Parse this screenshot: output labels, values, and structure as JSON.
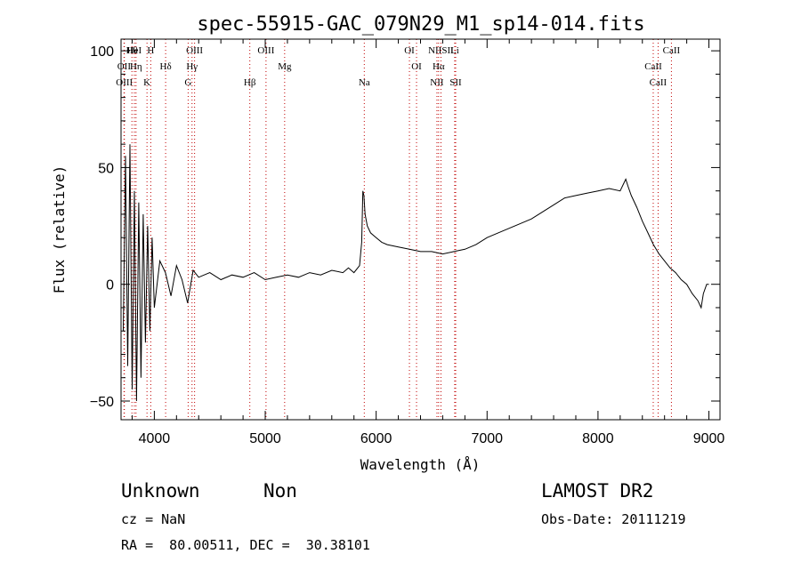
{
  "chart_data": {
    "type": "line",
    "title": "spec-55915-GAC_079N29_M1_sp14-014.fits",
    "xlabel": "Wavelength (Å)",
    "ylabel": "Flux (relative)",
    "xlim": [
      3700,
      9100
    ],
    "ylim": [
      -58,
      105
    ],
    "xticks": [
      4000,
      5000,
      6000,
      7000,
      8000,
      9000
    ],
    "yticks": [
      -50,
      0,
      50,
      100
    ],
    "line_color": "#000000",
    "marker_color": "#c00000",
    "spectrum": {
      "x": [
        3720,
        3740,
        3760,
        3780,
        3800,
        3820,
        3840,
        3860,
        3880,
        3900,
        3920,
        3940,
        3960,
        3980,
        4000,
        4050,
        4100,
        4150,
        4200,
        4250,
        4300,
        4350,
        4400,
        4500,
        4600,
        4700,
        4800,
        4900,
        5000,
        5100,
        5200,
        5300,
        5400,
        5500,
        5600,
        5700,
        5750,
        5800,
        5850,
        5870,
        5880,
        5890,
        5900,
        5920,
        5950,
        6000,
        6050,
        6100,
        6200,
        6300,
        6400,
        6500,
        6600,
        6700,
        6800,
        6900,
        7000,
        7100,
        7200,
        7300,
        7400,
        7500,
        7600,
        7700,
        7800,
        7900,
        8000,
        8100,
        8200,
        8250,
        8270,
        8300,
        8350,
        8400,
        8450,
        8500,
        8550,
        8600,
        8650,
        8700,
        8750,
        8800,
        8850,
        8900,
        8930,
        8950,
        8980,
        9000
      ],
      "y": [
        -20,
        55,
        -35,
        60,
        -45,
        40,
        -50,
        35,
        -40,
        30,
        -25,
        25,
        -20,
        20,
        -10,
        10,
        5,
        -5,
        8,
        2,
        -8,
        6,
        3,
        5,
        2,
        4,
        3,
        5,
        2,
        3,
        4,
        3,
        5,
        4,
        6,
        5,
        7,
        5,
        8,
        18,
        40,
        38,
        30,
        25,
        22,
        20,
        18,
        17,
        16,
        15,
        14,
        14,
        13,
        14,
        15,
        17,
        20,
        22,
        24,
        26,
        28,
        31,
        34,
        37,
        38,
        39,
        40,
        41,
        40,
        45,
        42,
        38,
        33,
        27,
        22,
        17,
        13,
        10,
        7,
        5,
        2,
        0,
        -4,
        -7,
        -10,
        -4,
        0,
        0
      ]
    },
    "line_markers": [
      {
        "name": "Hθ",
        "x": 3798
      },
      {
        "name": "OII",
        "x": 3727
      },
      {
        "name": "OIII",
        "x": 3730
      },
      {
        "name": "HeI",
        "x": 3820
      },
      {
        "name": "Hη",
        "x": 3835
      },
      {
        "name": "K",
        "x": 3934
      },
      {
        "name": "H",
        "x": 3968
      },
      {
        "name": "Hδ",
        "x": 4102
      },
      {
        "name": "G",
        "x": 4305
      },
      {
        "name": "OIII",
        "x": 4363
      },
      {
        "name": "Hγ",
        "x": 4340
      },
      {
        "name": "Hβ",
        "x": 4861
      },
      {
        "name": "OIII",
        "x": 5007
      },
      {
        "name": "Mg",
        "x": 5175
      },
      {
        "name": "Na",
        "x": 5893
      },
      {
        "name": "OI",
        "x": 6300
      },
      {
        "name": "OI",
        "x": 6364
      },
      {
        "name": "NII",
        "x": 6548
      },
      {
        "name": "NIISII",
        "x": 6584
      },
      {
        "name": "Hα",
        "x": 6563
      },
      {
        "name": "SII",
        "x": 6717
      },
      {
        "name": "Li",
        "x": 6708
      },
      {
        "name": "CaII",
        "x": 8498
      },
      {
        "name": "CaII",
        "x": 8542
      },
      {
        "name": "CaII",
        "x": 8662
      }
    ]
  },
  "info": {
    "class": "Unknown",
    "subclass": "Non",
    "survey": "LAMOST DR2",
    "cz": "cz = NaN",
    "obsdate": "Obs-Date: 20111219",
    "radec": "RA =  80.00511, DEC =  30.38101"
  }
}
